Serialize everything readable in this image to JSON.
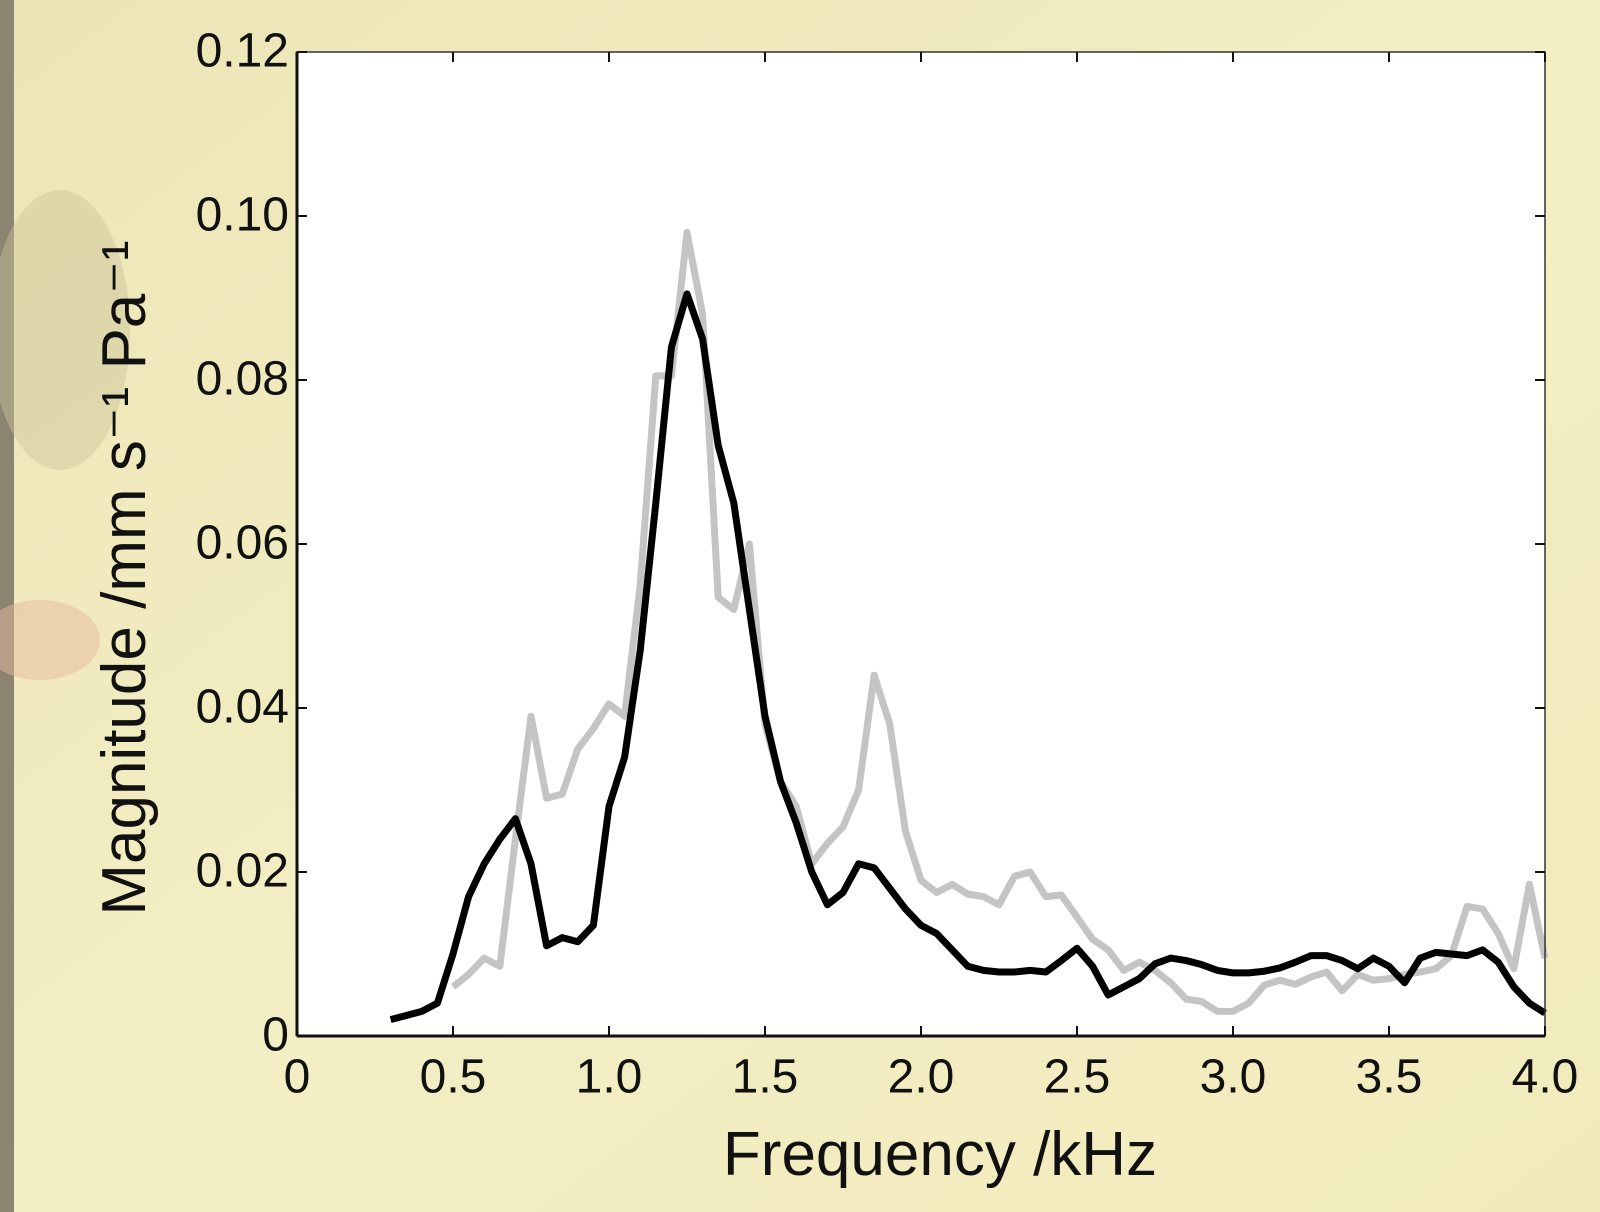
{
  "chart_data": {
    "type": "line",
    "xlabel": "Frequency /kHz",
    "ylabel": "Magnitude /mm s⁻¹ Pa⁻¹",
    "x": [
      0.3,
      0.4,
      0.45,
      0.5,
      0.55,
      0.6,
      0.65,
      0.7,
      0.75,
      0.8,
      0.85,
      0.9,
      0.95,
      1.0,
      1.05,
      1.1,
      1.15,
      1.2,
      1.25,
      1.3,
      1.35,
      1.4,
      1.45,
      1.5,
      1.55,
      1.6,
      1.65,
      1.7,
      1.75,
      1.8,
      1.85,
      1.9,
      1.95,
      2.0,
      2.05,
      2.1,
      2.15,
      2.2,
      2.25,
      2.3,
      2.35,
      2.4,
      2.45,
      2.5,
      2.55,
      2.6,
      2.65,
      2.7,
      2.75,
      2.8,
      2.85,
      2.9,
      2.95,
      3.0,
      3.05,
      3.1,
      3.15,
      3.2,
      3.25,
      3.3,
      3.35,
      3.4,
      3.45,
      3.5,
      3.55,
      3.6,
      3.65,
      3.7,
      3.75,
      3.8,
      3.85,
      3.9,
      3.95,
      4.0
    ],
    "series": [
      {
        "color": "#c4c4c4",
        "values": [
          null,
          null,
          null,
          0.006,
          0.0075,
          0.0095,
          0.0085,
          0.024,
          0.039,
          0.029,
          0.0295,
          0.035,
          0.0375,
          0.0405,
          0.039,
          0.055,
          0.0805,
          0.0805,
          0.098,
          0.088,
          0.0535,
          0.052,
          0.06,
          0.038,
          0.031,
          0.028,
          0.021,
          0.0235,
          0.0255,
          0.03,
          0.044,
          0.038,
          0.025,
          0.019,
          0.0175,
          0.0185,
          0.0173,
          0.017,
          0.016,
          0.0195,
          0.02,
          0.017,
          0.0172,
          0.0145,
          0.0118,
          0.0105,
          0.008,
          0.009,
          0.008,
          0.0065,
          0.0045,
          0.0042,
          0.003,
          0.003,
          0.004,
          0.0062,
          0.0068,
          0.0063,
          0.0072,
          0.0078,
          0.0055,
          0.0075,
          0.0068,
          0.007,
          0.0075,
          0.0078,
          0.0082,
          0.0098,
          0.0158,
          0.0155,
          0.0125,
          0.0082,
          0.0185,
          0.0095
        ]
      },
      {
        "color": "#000000",
        "values": [
          0.002,
          0.003,
          0.004,
          0.01,
          0.017,
          0.021,
          0.024,
          0.0265,
          0.021,
          0.011,
          0.012,
          0.0115,
          0.0135,
          0.028,
          0.034,
          0.047,
          0.065,
          0.084,
          0.0905,
          0.085,
          0.072,
          0.065,
          0.052,
          0.039,
          0.031,
          0.026,
          0.02,
          0.016,
          0.0175,
          0.021,
          0.0205,
          0.018,
          0.0155,
          0.0135,
          0.0125,
          0.0105,
          0.0085,
          0.008,
          0.0078,
          0.0078,
          0.008,
          0.0078,
          0.0092,
          0.0107,
          0.0085,
          0.005,
          0.006,
          0.007,
          0.0088,
          0.0095,
          0.0092,
          0.0087,
          0.008,
          0.0077,
          0.0077,
          0.0079,
          0.0083,
          0.009,
          0.0098,
          0.0098,
          0.0092,
          0.0082,
          0.0095,
          0.0085,
          0.0065,
          0.0095,
          0.0102,
          0.01,
          0.0098,
          0.0105,
          0.009,
          0.006,
          0.004,
          0.0028
        ]
      }
    ],
    "xlim": [
      0,
      4
    ],
    "xticks": [
      0,
      0.5,
      {
        "value": 1,
        "label": "1.0"
      },
      1.5,
      {
        "value": 2,
        "label": "2.0"
      },
      2.5,
      {
        "value": 3,
        "label": "3.0"
      },
      3.5,
      {
        "value": 4,
        "label": "4.0"
      }
    ],
    "ylim": [
      0,
      0.12
    ],
    "yticks": [
      0,
      0.02,
      0.04,
      0.06,
      0.08,
      {
        "value": 0.1,
        "label": "0.10"
      },
      0.12
    ],
    "grid": false
  }
}
